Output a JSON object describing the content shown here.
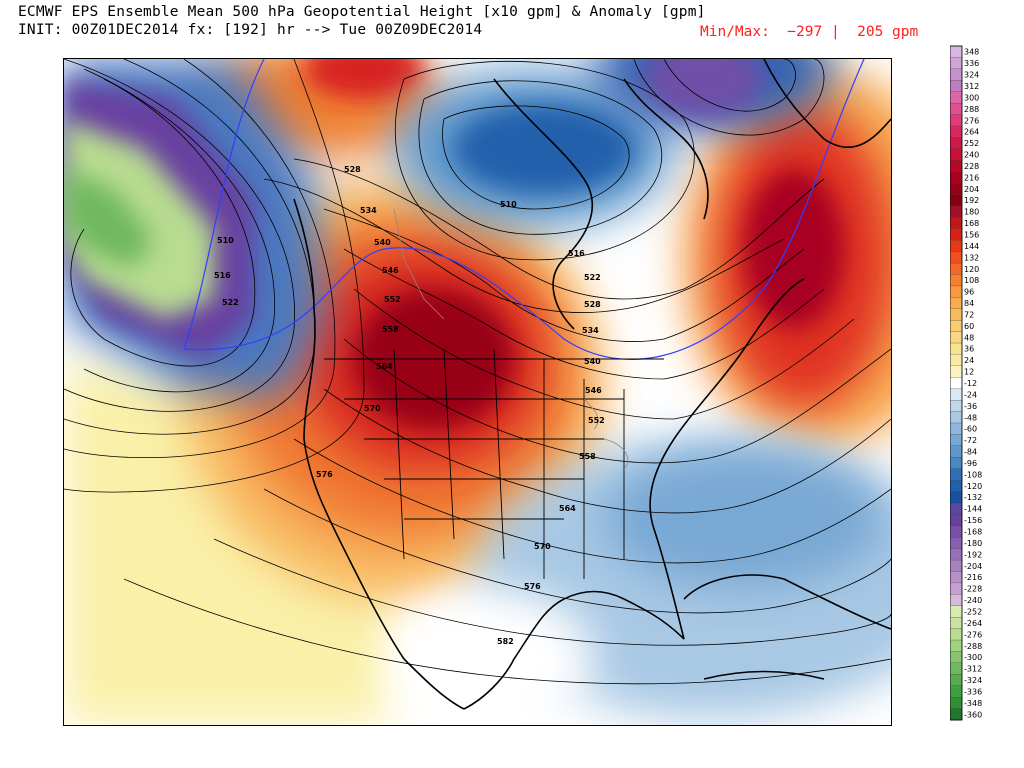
{
  "header": {
    "title_line1": "ECMWF EPS Ensemble Mean 500 hPa Geopotential Height [x10 gpm] & Anomaly [gpm]",
    "title_line2": "INIT: 00Z01DEC2014 fx: [192] hr --> Tue 00Z09DEC2014",
    "minmax": "Min/Max:  −297 |  205 gpm"
  },
  "colorbar": {
    "labels": [
      "348",
      "336",
      "324",
      "312",
      "300",
      "288",
      "276",
      "264",
      "252",
      "240",
      "228",
      "216",
      "204",
      "192",
      "180",
      "168",
      "156",
      "144",
      "132",
      "120",
      "108",
      "96",
      "84",
      "72",
      "60",
      "48",
      "36",
      "24",
      "12",
      "-12",
      "-24",
      "-36",
      "-48",
      "-60",
      "-72",
      "-84",
      "-96",
      "-108",
      "-120",
      "-132",
      "-144",
      "-156",
      "-168",
      "-180",
      "-192",
      "-204",
      "-216",
      "-228",
      "-240",
      "-252",
      "-264",
      "-276",
      "-288",
      "-300",
      "-312",
      "-324",
      "-336",
      "-348",
      "-360"
    ],
    "colors": [
      "#d8b8e0",
      "#d0a4d6",
      "#c890cc",
      "#c07cc0",
      "#d868a8",
      "#e05090",
      "#e03c78",
      "#d82860",
      "#d01848",
      "#c81038",
      "#b80828",
      "#a80020",
      "#980018",
      "#880010",
      "#a01028",
      "#c01818",
      "#d82018",
      "#e83818",
      "#f05020",
      "#f46828",
      "#f68030",
      "#f89840",
      "#f8ac50",
      "#f8bc60",
      "#f8cc70",
      "#f8d880",
      "#f8e490",
      "#f8eca0",
      "#fcf4c0",
      "#ffffff",
      "#d8e8f4",
      "#c0d8ec",
      "#a8c8e4",
      "#90b8dc",
      "#78a8d4",
      "#6098cc",
      "#4888c4",
      "#3070b8",
      "#2060ac",
      "#1850a0",
      "#5848a0",
      "#6840a0",
      "#7850a8",
      "#8860b0",
      "#9870b8",
      "#a880c0",
      "#b890c8",
      "#c8a0d0",
      "#d8b8dc",
      "#d8ecb0",
      "#c8e4a0",
      "#b8dc90",
      "#a0d080",
      "#88c470",
      "#70b860",
      "#58ac50",
      "#40a040",
      "#309038",
      "#207830"
    ]
  },
  "contour_labels": [
    {
      "text": "528"
    },
    {
      "text": "534"
    },
    {
      "text": "540"
    },
    {
      "text": "546"
    },
    {
      "text": "552"
    },
    {
      "text": "558"
    },
    {
      "text": "564"
    },
    {
      "text": "570"
    },
    {
      "text": "576"
    },
    {
      "text": "510"
    },
    {
      "text": "516"
    },
    {
      "text": "522"
    },
    {
      "text": "516"
    },
    {
      "text": "522"
    },
    {
      "text": "528"
    },
    {
      "text": "534"
    },
    {
      "text": "540"
    },
    {
      "text": "546"
    },
    {
      "text": "552"
    },
    {
      "text": "558"
    },
    {
      "text": "564"
    },
    {
      "text": "570"
    },
    {
      "text": "576"
    },
    {
      "text": "582"
    },
    {
      "text": "510"
    }
  ]
}
